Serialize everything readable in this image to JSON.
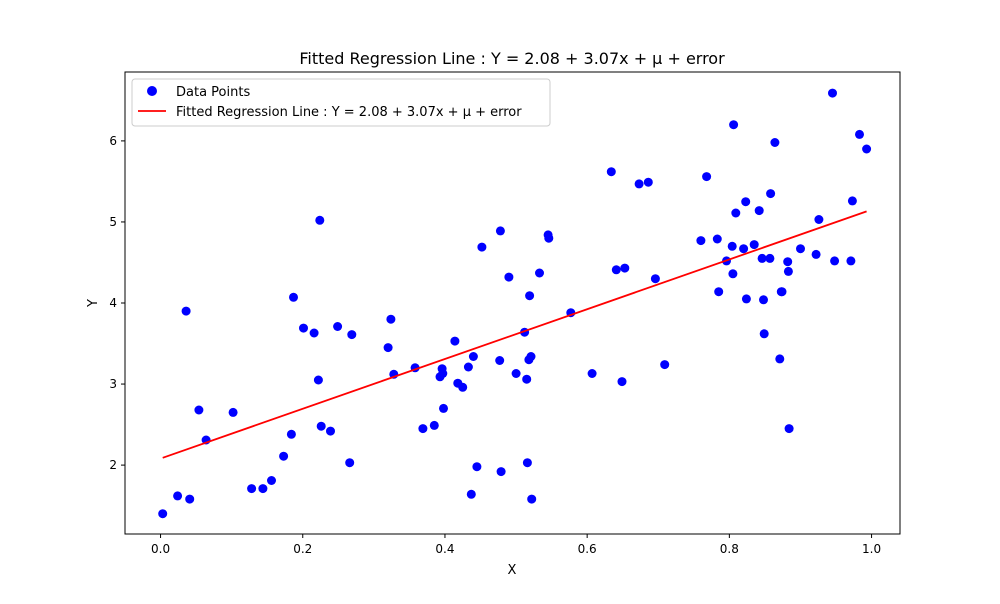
{
  "chart_data": {
    "type": "scatter",
    "title": "Fitted Regression Line : Y = 2.08 + 3.07x + μ + error",
    "xlabel": "X",
    "ylabel": "Y",
    "xlim": [
      -0.05,
      1.04
    ],
    "ylim": [
      1.15,
      6.85
    ],
    "xticks": [
      0.0,
      0.2,
      0.4,
      0.6,
      0.8,
      1.0
    ],
    "xtick_labels": [
      "0.0",
      "0.2",
      "0.4",
      "0.6",
      "0.8",
      "1.0"
    ],
    "yticks": [
      2,
      3,
      4,
      5,
      6
    ],
    "ytick_labels": [
      "2",
      "3",
      "4",
      "5",
      "6"
    ],
    "grid": false,
    "legend_position": "top-left",
    "series": [
      {
        "name": "Data Points",
        "kind": "scatter",
        "color": "#0000ff",
        "points": [
          [
            0.003,
            1.4
          ],
          [
            0.024,
            1.62
          ],
          [
            0.036,
            3.9
          ],
          [
            0.041,
            1.58
          ],
          [
            0.054,
            2.68
          ],
          [
            0.064,
            2.31
          ],
          [
            0.102,
            2.65
          ],
          [
            0.128,
            1.71
          ],
          [
            0.144,
            1.71
          ],
          [
            0.156,
            1.81
          ],
          [
            0.173,
            2.11
          ],
          [
            0.184,
            2.38
          ],
          [
            0.187,
            4.07
          ],
          [
            0.201,
            3.69
          ],
          [
            0.216,
            3.63
          ],
          [
            0.222,
            3.05
          ],
          [
            0.224,
            5.02
          ],
          [
            0.226,
            2.48
          ],
          [
            0.239,
            2.42
          ],
          [
            0.249,
            3.71
          ],
          [
            0.266,
            2.03
          ],
          [
            0.269,
            3.61
          ],
          [
            0.32,
            3.45
          ],
          [
            0.324,
            3.8
          ],
          [
            0.328,
            3.12
          ],
          [
            0.358,
            3.2
          ],
          [
            0.369,
            2.45
          ],
          [
            0.385,
            2.49
          ],
          [
            0.393,
            3.09
          ],
          [
            0.396,
            3.19
          ],
          [
            0.397,
            3.13
          ],
          [
            0.398,
            2.7
          ],
          [
            0.414,
            3.53
          ],
          [
            0.418,
            3.01
          ],
          [
            0.425,
            2.96
          ],
          [
            0.433,
            3.21
          ],
          [
            0.437,
            1.64
          ],
          [
            0.44,
            3.34
          ],
          [
            0.445,
            1.98
          ],
          [
            0.452,
            4.69
          ],
          [
            0.477,
            3.29
          ],
          [
            0.478,
            4.89
          ],
          [
            0.479,
            1.92
          ],
          [
            0.49,
            4.32
          ],
          [
            0.5,
            3.13
          ],
          [
            0.512,
            3.64
          ],
          [
            0.515,
            3.06
          ],
          [
            0.516,
            2.03
          ],
          [
            0.518,
            3.3
          ],
          [
            0.519,
            4.09
          ],
          [
            0.521,
            3.34
          ],
          [
            0.522,
            1.58
          ],
          [
            0.533,
            4.37
          ],
          [
            0.545,
            4.84
          ],
          [
            0.546,
            4.8
          ],
          [
            0.577,
            3.88
          ],
          [
            0.607,
            3.13
          ],
          [
            0.634,
            5.62
          ],
          [
            0.641,
            4.41
          ],
          [
            0.649,
            3.03
          ],
          [
            0.653,
            4.43
          ],
          [
            0.673,
            5.47
          ],
          [
            0.686,
            5.49
          ],
          [
            0.696,
            4.3
          ],
          [
            0.709,
            3.24
          ],
          [
            0.76,
            4.77
          ],
          [
            0.768,
            5.56
          ],
          [
            0.783,
            4.79
          ],
          [
            0.785,
            4.14
          ],
          [
            0.796,
            4.52
          ],
          [
            0.804,
            4.7
          ],
          [
            0.805,
            4.36
          ],
          [
            0.806,
            6.2
          ],
          [
            0.809,
            5.11
          ],
          [
            0.82,
            4.67
          ],
          [
            0.823,
            5.25
          ],
          [
            0.824,
            4.05
          ],
          [
            0.835,
            4.72
          ],
          [
            0.842,
            5.14
          ],
          [
            0.846,
            4.55
          ],
          [
            0.848,
            4.04
          ],
          [
            0.849,
            3.62
          ],
          [
            0.857,
            4.55
          ],
          [
            0.858,
            5.35
          ],
          [
            0.864,
            5.98
          ],
          [
            0.871,
            3.31
          ],
          [
            0.873,
            4.14
          ],
          [
            0.874,
            4.14
          ],
          [
            0.882,
            4.51
          ],
          [
            0.883,
            4.39
          ],
          [
            0.884,
            2.45
          ],
          [
            0.9,
            4.67
          ],
          [
            0.922,
            4.6
          ],
          [
            0.926,
            5.03
          ],
          [
            0.945,
            6.59
          ],
          [
            0.948,
            4.52
          ],
          [
            0.971,
            4.52
          ],
          [
            0.973,
            5.26
          ],
          [
            0.983,
            6.08
          ],
          [
            0.993,
            5.9
          ]
        ]
      },
      {
        "name": "Fitted Regression Line : Y = 2.08 + 3.07x + μ + error",
        "kind": "line",
        "color": "#ff0000",
        "x": [
          0.003,
          0.993
        ],
        "y": [
          2.09,
          5.13
        ]
      }
    ]
  }
}
